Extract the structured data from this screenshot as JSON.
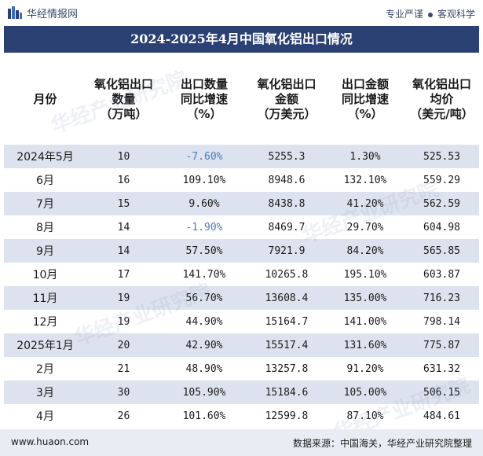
{
  "header": {
    "site_name": "华经情报网",
    "tagline_left": "专业严谨",
    "tagline_right": "客观科学"
  },
  "title": "2024-2025年4月中国氧化铝出口情况",
  "columns": [
    "月份",
    "氧化铝出口数量(万吨)",
    "出口数量同比增速(%)",
    "氧化铝出口金额(万美元)",
    "出口金额同比增速(%)",
    "氧化铝出口均价(美元/吨)"
  ],
  "column_lines": [
    [
      "月份"
    ],
    [
      "氧化铝出口",
      "数量",
      "（万吨）"
    ],
    [
      "出口数量",
      "同比增速",
      "（%）"
    ],
    [
      "氧化铝出口",
      "金额",
      "（万美元）"
    ],
    [
      "出口金额",
      "同比增速",
      "（%）"
    ],
    [
      "氧化铝出口",
      "均价",
      "（美元/吨）"
    ]
  ],
  "rows": [
    {
      "month": "2024年5月",
      "qty": "10",
      "qty_yoy": "-7.60%",
      "amount": "5255.3",
      "amount_yoy": "1.30%",
      "price": "525.53"
    },
    {
      "month": "6月",
      "qty": "16",
      "qty_yoy": "109.10%",
      "amount": "8948.6",
      "amount_yoy": "132.10%",
      "price": "559.29"
    },
    {
      "month": "7月",
      "qty": "15",
      "qty_yoy": "9.60%",
      "amount": "8438.8",
      "amount_yoy": "41.20%",
      "price": "562.59"
    },
    {
      "month": "8月",
      "qty": "14",
      "qty_yoy": "-1.90%",
      "amount": "8469.7",
      "amount_yoy": "29.70%",
      "price": "604.98"
    },
    {
      "month": "9月",
      "qty": "14",
      "qty_yoy": "57.50%",
      "amount": "7921.9",
      "amount_yoy": "84.20%",
      "price": "565.85"
    },
    {
      "month": "10月",
      "qty": "17",
      "qty_yoy": "141.70%",
      "amount": "10265.8",
      "amount_yoy": "195.10%",
      "price": "603.87"
    },
    {
      "month": "11月",
      "qty": "19",
      "qty_yoy": "56.70%",
      "amount": "13608.4",
      "amount_yoy": "135.00%",
      "price": "716.23"
    },
    {
      "month": "12月",
      "qty": "19",
      "qty_yoy": "44.90%",
      "amount": "15164.7",
      "amount_yoy": "141.00%",
      "price": "798.14"
    },
    {
      "month": "2025年1月",
      "qty": "20",
      "qty_yoy": "42.90%",
      "amount": "15517.4",
      "amount_yoy": "131.60%",
      "price": "775.87"
    },
    {
      "month": "2月",
      "qty": "21",
      "qty_yoy": "48.90%",
      "amount": "13257.8",
      "amount_yoy": "91.20%",
      "price": "631.32"
    },
    {
      "month": "3月",
      "qty": "30",
      "qty_yoy": "105.90%",
      "amount": "15184.6",
      "amount_yoy": "105.00%",
      "price": "506.15"
    },
    {
      "month": "4月",
      "qty": "26",
      "qty_yoy": "101.60%",
      "amount": "12599.8",
      "amount_yoy": "87.10%",
      "price": "484.61"
    }
  ],
  "footer": {
    "site": "www.huaon.com",
    "source": "数据来源：中国海关，华经产业研究院整理"
  },
  "watermark": "华经产业研究院",
  "colors": {
    "title_bar": "#2b4073",
    "row_stripe": "#dde3ee",
    "negative_value": "#4a7bbf",
    "footer_bg": "#e9ecf2"
  }
}
